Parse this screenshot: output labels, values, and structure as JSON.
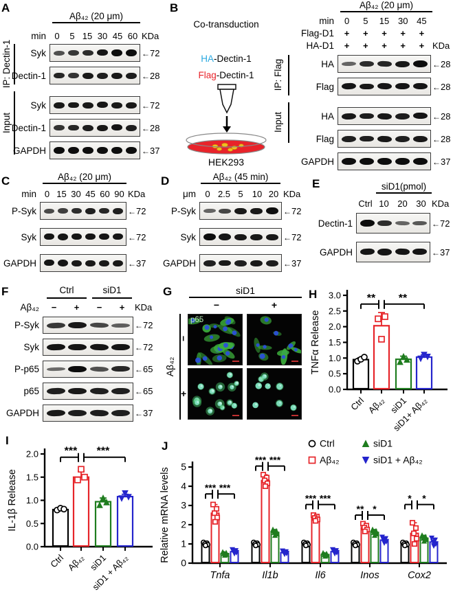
{
  "icons": {
    "arrow_left": "←"
  },
  "colors": {
    "red": "#e62429",
    "green": "#1f7d1f",
    "blue": "#2424cc",
    "cyan": "#2aa9e0",
    "black": "#000000",
    "scalebar": "#c03030"
  },
  "A": {
    "label": "A",
    "title": "Aβ₄₂ (20 μm)",
    "unit": "min",
    "lanes": [
      "0",
      "5",
      "15",
      "30",
      "45",
      "60"
    ],
    "kda_header": "KDa",
    "groups": [
      {
        "name": "IP: Dectin-1"
      },
      {
        "name": "Input"
      }
    ],
    "rows": [
      {
        "label": "Syk",
        "kda": "72",
        "bands": [
          0.45,
          0.65,
          0.75,
          0.95,
          1,
          1
        ]
      },
      {
        "label": "Dectin-1",
        "kda": "28",
        "bands": [
          0.8,
          0.7,
          0.9,
          0.85,
          0.9,
          0.88
        ]
      },
      {
        "label": "Syk",
        "kda": "72",
        "bands": [
          0.9,
          0.9,
          0.9,
          0.92,
          0.9,
          0.9
        ]
      },
      {
        "label": "Dectin-1",
        "kda": "28",
        "bands": [
          0.7,
          0.8,
          0.85,
          0.9,
          0.95,
          0.85
        ]
      },
      {
        "label": "GAPDH",
        "kda": "37",
        "bands": [
          1,
          1,
          1,
          1,
          1,
          1
        ]
      }
    ]
  },
  "B": {
    "label": "B",
    "diagram": {
      "title": "Co-transduction",
      "ha": "HA",
      "ha_rest": "-Dectin-1",
      "flag": "Flag",
      "flag_rest": "-Dectin-1",
      "cell": "HEK293"
    },
    "title": "Aβ₄₂ (20 μm)",
    "unit": "min",
    "lanes": [
      "0",
      "5",
      "15",
      "30",
      "45"
    ],
    "flag_row": {
      "label": "Flag-D1",
      "signs": [
        "+",
        "+",
        "+",
        "+",
        "+"
      ]
    },
    "ha_row": {
      "label": "HA-D1",
      "signs": [
        "+",
        "+",
        "+",
        "+",
        "+"
      ]
    },
    "kda_header": "KDa",
    "groups": [
      {
        "name": "IP: Flag"
      },
      {
        "name": "Input"
      }
    ],
    "rows": [
      {
        "label": "HA",
        "kda": "28",
        "bands": [
          0.3,
          0.75,
          0.8,
          0.9,
          1
        ]
      },
      {
        "label": "Flag",
        "kda": "28",
        "bands": [
          0.95,
          0.9,
          0.92,
          0.95,
          0.95
        ]
      },
      {
        "label": "HA",
        "kda": "28",
        "bands": [
          0.9,
          0.88,
          0.9,
          0.88,
          0.95
        ]
      },
      {
        "label": "Flag",
        "kda": "28",
        "bands": [
          0.85,
          0.85,
          0.9,
          0.85,
          0.9
        ]
      },
      {
        "label": "GAPDH",
        "kda": "37",
        "bands": [
          1,
          1,
          1,
          1,
          1
        ]
      }
    ]
  },
  "C": {
    "label": "C",
    "title": "Aβ₄₂ (20 μm)",
    "unit": "min",
    "lanes": [
      "0",
      "15",
      "30",
      "45",
      "60",
      "90"
    ],
    "kda_header": "KDa",
    "rows": [
      {
        "label": "P-Syk",
        "kda": "72",
        "bands": [
          0.5,
          0.6,
          0.75,
          0.85,
          0.8,
          0.85
        ]
      },
      {
        "label": "Syk",
        "kda": "72",
        "bands": [
          0.95,
          0.95,
          0.95,
          0.95,
          0.95,
          0.95
        ]
      },
      {
        "label": "GAPDH",
        "kda": "37",
        "bands": [
          0.95,
          0.95,
          0.9,
          0.9,
          0.9,
          0.9
        ]
      }
    ]
  },
  "D": {
    "label": "D",
    "title": "Aβ₄₂ (45 min)",
    "unit": "μm",
    "lanes": [
      "0",
      "2.5",
      "5",
      "10",
      "20"
    ],
    "kda_header": "KDa",
    "rows": [
      {
        "label": "P-Syk",
        "kda": "72",
        "bands": [
          0.3,
          0.55,
          0.9,
          0.9,
          1
        ]
      },
      {
        "label": "Syk",
        "kda": "72",
        "bands": [
          1,
          0.95,
          0.9,
          0.9,
          0.9
        ]
      },
      {
        "label": "GAPDH",
        "kda": "37",
        "bands": [
          0.85,
          0.9,
          0.85,
          0.9,
          0.88
        ]
      }
    ]
  },
  "E": {
    "label": "E",
    "title": "siD1(pmol)",
    "lanes": [
      "Ctrl",
      "10",
      "20",
      "30"
    ],
    "kda_header": "KDa",
    "rows": [
      {
        "label": "Dectin-1",
        "kda": "72",
        "bands": [
          1,
          0.75,
          0.3,
          0.4
        ]
      },
      {
        "label": "GAPDH",
        "kda": "37",
        "bands": [
          0.95,
          0.95,
          0.95,
          0.95
        ]
      }
    ]
  },
  "F": {
    "label": "F",
    "col_groups": [
      "Ctrl",
      "siD1"
    ],
    "treat_label": "Aβ₄₂",
    "signs": [
      "−",
      "+",
      "−",
      "+"
    ],
    "kda_header": "KDa",
    "rows": [
      {
        "label": "P-Syk",
        "kda": "72",
        "bands": [
          0.65,
          0.9,
          0.55,
          0.35
        ]
      },
      {
        "label": "Syk",
        "kda": "72",
        "bands": [
          0.95,
          0.95,
          0.92,
          0.95
        ]
      },
      {
        "label": "P-p65",
        "kda": "65",
        "bands": [
          0.25,
          1,
          0.45,
          0.8
        ]
      },
      {
        "label": "p65",
        "kda": "65",
        "bands": [
          0.85,
          0.9,
          0.85,
          0.85
        ]
      },
      {
        "label": "GAPDH",
        "kda": "37",
        "bands": [
          0.9,
          0.88,
          0.88,
          0.86
        ]
      }
    ]
  },
  "G": {
    "label": "G",
    "col_title": "siD1",
    "col_signs": [
      "−",
      "+"
    ],
    "row_label": "Aβ₄₂",
    "row_signs": [
      "−",
      "+"
    ],
    "overlay": "p65"
  },
  "H": {
    "label": "H"
  },
  "I": {
    "label": "I"
  },
  "J": {
    "label": "J"
  },
  "chart_data": [
    {
      "id": "H",
      "type": "bar",
      "ylabel": "TNFα Release",
      "ylim": [
        0,
        3
      ],
      "ytick_step": 0.5,
      "grid": false,
      "xticklabel_rotation": 45,
      "categories": [
        "Ctrl",
        "Aβ₄₂",
        "siD1",
        "siD1+ Aβ₄₂"
      ],
      "values": [
        0.95,
        2.03,
        0.96,
        1.03
      ],
      "errors": [
        0.06,
        0.42,
        0.1,
        0.07
      ],
      "points": [
        [
          0.9,
          0.96,
          1.03
        ],
        [
          2.25,
          1.6,
          2.32
        ],
        [
          0.88,
          1.05,
          0.95
        ],
        [
          0.98,
          1.1,
          1.04
        ]
      ],
      "colors": [
        "#000000",
        "#e62429",
        "#1f7d1f",
        "#2424cc"
      ],
      "markers": [
        "circle",
        "square",
        "triangle",
        "triangle-down"
      ],
      "sig_y": 2.72,
      "significance": [
        {
          "pair": [
            0,
            1
          ],
          "label": "**"
        },
        {
          "pair": [
            1,
            3
          ],
          "label": "**"
        }
      ]
    },
    {
      "id": "I",
      "type": "bar",
      "ylabel": "IL-1β Release",
      "ylim": [
        0,
        2
      ],
      "ytick_step": 0.5,
      "grid": false,
      "xticklabel_rotation": 45,
      "categories": [
        "Ctrl",
        "Aβ₄₂",
        "siD1",
        "siD1 + Aβ₄₂"
      ],
      "values": [
        0.8,
        1.5,
        0.97,
        1.08
      ],
      "errors": [
        0.03,
        0.13,
        0.08,
        0.05
      ],
      "points": [
        [
          0.79,
          0.83,
          0.81
        ],
        [
          1.44,
          1.67,
          1.5
        ],
        [
          0.9,
          1.05,
          0.96
        ],
        [
          1.04,
          1.15,
          1.07
        ]
      ],
      "colors": [
        "#000000",
        "#e62429",
        "#1f7d1f",
        "#2424cc"
      ],
      "markers": [
        "circle",
        "square",
        "triangle",
        "triangle-down"
      ],
      "sig_y": 1.93,
      "significance": [
        {
          "pair": [
            0,
            1
          ],
          "label": "***"
        },
        {
          "pair": [
            1,
            3
          ],
          "label": "***"
        }
      ]
    },
    {
      "id": "J",
      "type": "grouped-bar",
      "ylabel": "Relative mRNA levels",
      "ylim": [
        0,
        5
      ],
      "ytick_step": 1,
      "grid": false,
      "legend_position": "top",
      "categories": [
        "Tnfa",
        "Il1b",
        "Il6",
        "Inos",
        "Cox2"
      ],
      "series": [
        {
          "name": "Ctrl",
          "marker": "circle",
          "color": "#000000",
          "values": [
            1,
            1,
            1,
            1,
            1
          ],
          "errors": [
            0.08,
            0.08,
            0.08,
            0.08,
            0.08
          ]
        },
        {
          "name": "Aβ₄₂",
          "marker": "square",
          "color": "#e62429",
          "values": [
            2.6,
            4.3,
            2.35,
            1.85,
            1.55
          ],
          "errors": [
            0.45,
            0.3,
            0.15,
            0.2,
            0.55
          ]
        },
        {
          "name": "siD1",
          "marker": "triangle",
          "color": "#1f7d1f",
          "values": [
            0.5,
            1.6,
            0.45,
            1.6,
            1.3
          ],
          "errors": [
            0.08,
            0.15,
            0.08,
            0.15,
            0.15
          ]
        },
        {
          "name": "siD1 + Aβ₄₂",
          "marker": "triangle-down",
          "color": "#2424cc",
          "values": [
            0.6,
            0.55,
            0.6,
            1.2,
            1.1
          ],
          "errors": [
            0.1,
            0.08,
            0.1,
            0.15,
            0.2
          ]
        }
      ],
      "significance": [
        {
          "cat": 0,
          "left": "***",
          "right": "***",
          "y": 3.6
        },
        {
          "cat": 1,
          "left": "***",
          "right": "***",
          "y": 5.05
        },
        {
          "cat": 2,
          "left": "***",
          "right": "***",
          "y": 3.05
        },
        {
          "cat": 3,
          "left": "**",
          "right": "*",
          "y": 2.5
        },
        {
          "cat": 4,
          "left": "*",
          "right": "*",
          "y": 3.05
        }
      ]
    }
  ]
}
